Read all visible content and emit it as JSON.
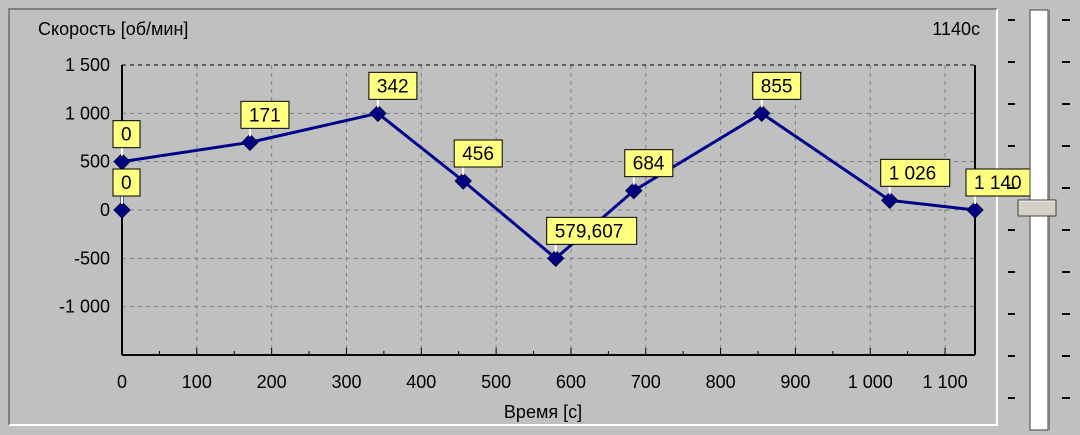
{
  "chart_data": {
    "type": "line",
    "title": "Скорость [об/мин]",
    "time_readout": "1140с",
    "xlabel": "Время [с]",
    "ylabel": "Скорость [об/мин]",
    "xlim": [
      0,
      1140
    ],
    "ylim": [
      -1500,
      1500
    ],
    "x_ticks": [
      0,
      100,
      200,
      300,
      400,
      500,
      600,
      700,
      800,
      900,
      1000,
      1100
    ],
    "x_tick_labels": [
      "0",
      "100",
      "200",
      "300",
      "400",
      "500",
      "600",
      "700",
      "800",
      "900",
      "1 000",
      "1 100"
    ],
    "y_ticks": [
      1500,
      1000,
      500,
      0,
      -500,
      -1000
    ],
    "y_tick_labels": [
      "1 500",
      "1 000",
      "500",
      "0",
      "-500",
      "-1 000"
    ],
    "grid": true,
    "series": [
      {
        "x": [
          0,
          0,
          171,
          342,
          456,
          579.607,
          684,
          855,
          1026,
          1140
        ],
        "y": [
          0,
          500,
          700,
          1000,
          300,
          -500,
          200,
          1000,
          100,
          0
        ]
      }
    ],
    "point_labels": [
      "0",
      "0",
      "171",
      "342",
      "456",
      "579,607",
      "684",
      "855",
      "1 026",
      "1 140"
    ],
    "colors": {
      "line": "#00008b",
      "marker": "#000080",
      "label_bg": "#ffff80",
      "grid": "#808080",
      "background": "#c0c0c0"
    }
  },
  "slider": {
    "level_fraction": 0.5
  }
}
